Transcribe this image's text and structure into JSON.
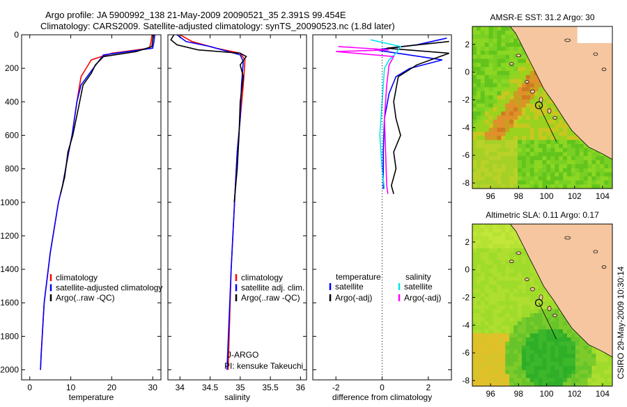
{
  "title": {
    "line1": "Argo profile: JA 5900992_138 21-May-2009 20090521_35 2.391S 99.454E",
    "line2": "Climatology: CARS2009. Satellite-adjusted climatology: synTS_20090523.nc (1.8d later)"
  },
  "side_label": "CSIRO 29-May-2009 10:30:14",
  "colors": {
    "climatology": "#ff0000",
    "satellite": "#0000ff",
    "argo": "#000000",
    "satellite_salinity": "#00e5ee",
    "argo_salinity": "#ff00ff",
    "land": "#f5c6a0",
    "sst_base": "#7ed321",
    "sla_base": "#a8e02a"
  },
  "chart_data": [
    {
      "type": "line",
      "id": "temperature",
      "xlabel": "temperature",
      "ylabel": "",
      "xlim": [
        -2,
        32
      ],
      "ylim": [
        2060,
        0
      ],
      "xticks": [
        0,
        10,
        20,
        30
      ],
      "yticks": [
        0,
        200,
        400,
        600,
        800,
        1000,
        1200,
        1400,
        1600,
        1800,
        2000
      ],
      "legend": {
        "position": "lower-right",
        "entries": [
          "climatology",
          "satellite-adjusted climatology",
          "Argo(..raw -QC)"
        ]
      },
      "series": [
        {
          "name": "climatology",
          "color": "#ff0000",
          "points": [
            [
              29.8,
              0
            ],
            [
              29.6,
              40
            ],
            [
              29.2,
              80
            ],
            [
              20,
              110
            ],
            [
              15,
              150
            ],
            [
              12.5,
              250
            ],
            [
              11.5,
              400
            ],
            [
              10.3,
              600
            ],
            [
              9.5,
              700
            ],
            [
              8,
              900
            ],
            [
              7,
              1000
            ],
            [
              5,
              1300
            ],
            [
              3.5,
              1600
            ],
            [
              2.8,
              1900
            ],
            [
              2.6,
              2000
            ]
          ]
        },
        {
          "name": "satellite-adjusted climatology",
          "color": "#0000ff",
          "points": [
            [
              30.5,
              0
            ],
            [
              30.3,
              40
            ],
            [
              30,
              80
            ],
            [
              18,
              120
            ],
            [
              15.5,
              200
            ],
            [
              12.5,
              300
            ],
            [
              11.5,
              400
            ],
            [
              10.3,
              600
            ],
            [
              9.5,
              700
            ],
            [
              8,
              900
            ],
            [
              7,
              1000
            ],
            [
              5,
              1300
            ],
            [
              3.5,
              1600
            ],
            [
              2.8,
              1900
            ],
            [
              2.6,
              2000
            ]
          ]
        },
        {
          "name": "Argo(..raw -QC)",
          "color": "#000000",
          "points": [
            [
              30.2,
              0
            ],
            [
              30,
              30
            ],
            [
              29.8,
              70
            ],
            [
              26,
              100
            ],
            [
              18,
              130
            ],
            [
              16,
              180
            ],
            [
              15,
              230
            ],
            [
              13,
              300
            ],
            [
              12,
              420
            ],
            [
              10.5,
              600
            ],
            [
              9.3,
              700
            ],
            [
              8.5,
              850
            ],
            [
              7.5,
              950
            ]
          ]
        }
      ]
    },
    {
      "type": "line",
      "id": "salinity",
      "xlabel": "salinity",
      "ylabel": "",
      "xlim": [
        33.8,
        36.1
      ],
      "ylim": [
        2060,
        0
      ],
      "xticks": [
        34,
        34.5,
        35,
        35.5,
        36
      ],
      "yticks": [
        0,
        200,
        400,
        600,
        800,
        1000,
        1200,
        1400,
        1600,
        1800,
        2000
      ],
      "legend": {
        "position": "lower-right",
        "entries": [
          "climatology",
          "satellite adj. clim.",
          "Argo(..raw -QC)"
        ]
      },
      "annotations": [
        "J-ARGO",
        "PI: kensuke Takeuchi"
      ],
      "series": [
        {
          "name": "climatology",
          "color": "#ff0000",
          "points": [
            [
              34.0,
              0
            ],
            [
              34.2,
              40
            ],
            [
              34.6,
              80
            ],
            [
              35.0,
              110
            ],
            [
              35.08,
              150
            ],
            [
              35.05,
              300
            ],
            [
              35.0,
              500
            ],
            [
              34.95,
              700
            ],
            [
              34.92,
              900
            ],
            [
              34.85,
              1400
            ],
            [
              34.8,
              2000
            ]
          ]
        },
        {
          "name": "satellite adj. clim.",
          "color": "#0000ff",
          "points": [
            [
              33.95,
              0
            ],
            [
              34.1,
              40
            ],
            [
              34.5,
              70
            ],
            [
              35.0,
              120
            ],
            [
              35.05,
              160
            ],
            [
              35.02,
              300
            ],
            [
              35.0,
              500
            ],
            [
              34.95,
              700
            ],
            [
              34.92,
              900
            ],
            [
              34.85,
              1400
            ],
            [
              34.78,
              2000
            ]
          ]
        },
        {
          "name": "Argo(..raw -QC)",
          "color": "#000000",
          "points": [
            [
              33.9,
              0
            ],
            [
              33.85,
              30
            ],
            [
              33.95,
              60
            ],
            [
              34.3,
              90
            ],
            [
              35.0,
              110
            ],
            [
              35.1,
              130
            ],
            [
              35.0,
              180
            ],
            [
              35.05,
              250
            ],
            [
              35.0,
              400
            ],
            [
              34.98,
              600
            ],
            [
              34.95,
              800
            ],
            [
              34.9,
              1000
            ]
          ]
        }
      ]
    },
    {
      "type": "line",
      "id": "difference",
      "xlabel": "difference from climatology",
      "ylabel": "",
      "xlim": [
        -3,
        3
      ],
      "ylim": [
        2060,
        0
      ],
      "xticks": [
        -2,
        0,
        2
      ],
      "yticks": [
        0,
        200,
        400,
        600,
        800,
        1000,
        1200,
        1400,
        1600,
        1800,
        2000
      ],
      "legend": {
        "position": "lower-center",
        "headers": [
          "temperature",
          "salinity"
        ],
        "entries": [
          "satellite",
          "Argo(-adj)",
          "satellite",
          "Argo(-adj)"
        ]
      },
      "series": [
        {
          "name": "satellite",
          "group": "temperature",
          "color": "#0000ff",
          "points": [
            [
              2.8,
              20
            ],
            [
              1.5,
              60
            ],
            [
              -0.3,
              90
            ],
            [
              2.6,
              150
            ],
            [
              1.2,
              200
            ],
            [
              0.6,
              250
            ],
            [
              0.3,
              350
            ],
            [
              0.1,
              500
            ],
            [
              0.05,
              700
            ],
            [
              0.05,
              920
            ]
          ]
        },
        {
          "name": "Argo(-adj)",
          "group": "temperature",
          "color": "#000000",
          "points": [
            [
              2.9,
              40
            ],
            [
              0.2,
              80
            ],
            [
              2.9,
              110
            ],
            [
              1.5,
              180
            ],
            [
              0.7,
              250
            ],
            [
              0.5,
              400
            ],
            [
              0.6,
              500
            ],
            [
              0.8,
              600
            ],
            [
              0.5,
              700
            ],
            [
              0.6,
              800
            ],
            [
              0.4,
              900
            ],
            [
              0.5,
              950
            ]
          ]
        },
        {
          "name": "satellite",
          "group": "salinity",
          "color": "#00e5ee",
          "points": [
            [
              -0.5,
              30
            ],
            [
              0.8,
              70
            ],
            [
              0.6,
              110
            ],
            [
              0.3,
              150
            ],
            [
              0.1,
              200
            ],
            [
              0.0,
              400
            ],
            [
              -0.1,
              600
            ],
            [
              0.0,
              800
            ],
            [
              0.1,
              920
            ]
          ]
        },
        {
          "name": "Argo(-adj)",
          "group": "salinity",
          "color": "#ff00ff",
          "points": [
            [
              -1.9,
              70
            ],
            [
              0.3,
              90
            ],
            [
              -2.0,
              100
            ],
            [
              0.5,
              130
            ],
            [
              0.3,
              180
            ],
            [
              0.2,
              300
            ],
            [
              0.1,
              500
            ],
            [
              0.15,
              700
            ],
            [
              0.2,
              900
            ],
            [
              0.25,
              950
            ]
          ]
        }
      ]
    },
    {
      "type": "heatmap",
      "id": "sst_map",
      "title": "AMSR-E SST: 31.2  Argo: 30",
      "xlabel": "",
      "ylabel": "",
      "xlim": [
        94.7,
        104.7
      ],
      "ylim": [
        -8.4,
        3.3
      ],
      "xticks": [
        96,
        98,
        100,
        102,
        104
      ],
      "yticks": [
        2,
        0,
        -2,
        -4,
        -6,
        -8
      ],
      "marker": {
        "lon": 99.454,
        "lat": -2.391
      }
    },
    {
      "type": "heatmap",
      "id": "sla_map",
      "title": "Altimetric SLA: 0.11  Argo: 0.17",
      "xlabel": "",
      "ylabel": "",
      "xlim": [
        94.7,
        104.7
      ],
      "ylim": [
        -8.4,
        3.3
      ],
      "xticks": [
        96,
        98,
        100,
        102,
        104
      ],
      "yticks": [
        2,
        0,
        -2,
        -4,
        -6,
        -8
      ],
      "marker": {
        "lon": 99.454,
        "lat": -2.391
      }
    }
  ]
}
